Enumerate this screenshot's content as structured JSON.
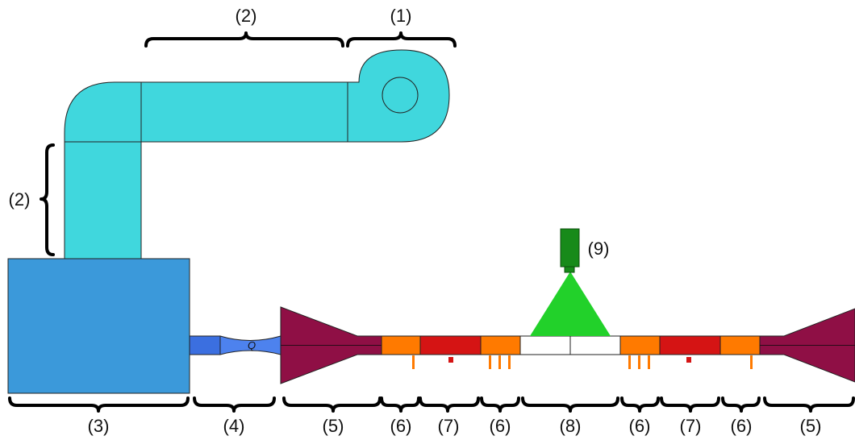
{
  "labels": {
    "fan": "(1)",
    "duct_horizontal": "(2)",
    "duct_vertical": "(2)",
    "settling_chamber": "(3)",
    "flow_meter": "(4)",
    "diffuser_left": "(5)",
    "diffuser_right": "(5)",
    "sensor_section_1": "(6)",
    "heater_section_1": "(7)",
    "sensor_section_2": "(6)",
    "test_section": "(8)",
    "sensor_section_3": "(6)",
    "heater_section_2": "(7)",
    "sensor_section_4": "(6)",
    "camera": "(9)",
    "flow_rate_symbol": "Q"
  },
  "colors": {
    "duct": "#40d7dd",
    "chamber": "#3b99da",
    "flow_meter": "#3b6fe0",
    "diffuser": "#8f0f45",
    "sensor": "#ff7a00",
    "heater": "#d51414",
    "test_section": "#ffffff",
    "camera_body": "#178a1a",
    "camera_view": "#22d12a"
  },
  "icons": {
    "fan": "centrifugal-fan-icon",
    "camera": "camera-icon"
  }
}
